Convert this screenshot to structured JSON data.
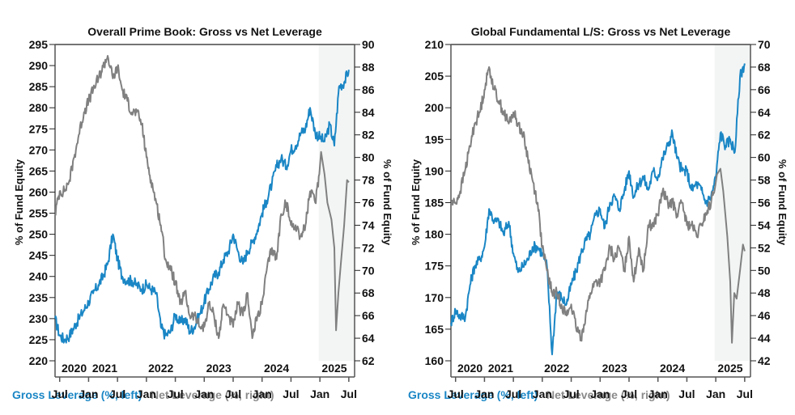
{
  "colors": {
    "gross": "#1a86c5",
    "net": "#808080",
    "shade": "#f3f5f5",
    "axis": "#555555"
  },
  "chart_data": [
    {
      "type": "line",
      "title": "Overall Prime Book: Gross vs Net Leverage",
      "ylabel_left": "% of Fund Equity",
      "ylabel_right": "% of Fund Equity",
      "ylim_left": [
        220,
        295
      ],
      "ylim_right": [
        62,
        90
      ],
      "yticks_left": [
        "220",
        "225",
        "230",
        "235",
        "240",
        "245",
        "250",
        "255",
        "260",
        "265",
        "270",
        "275",
        "280",
        "285",
        "290",
        "295"
      ],
      "yticks_right": [
        "62",
        "64",
        "66",
        "68",
        "70",
        "72",
        "74",
        "76",
        "78",
        "80",
        "82",
        "84",
        "86",
        "88",
        "90"
      ],
      "xlim": [
        2020.42,
        2025.6
      ],
      "xticks": [
        {
          "t": 2020.5,
          "label": "Jul"
        },
        {
          "t": 2021.0,
          "label": "Jan"
        },
        {
          "t": 2021.5,
          "label": "Jul"
        },
        {
          "t": 2022.0,
          "label": "Jan"
        },
        {
          "t": 2022.5,
          "label": "Jul"
        },
        {
          "t": 2023.0,
          "label": "Jan"
        },
        {
          "t": 2023.5,
          "label": "Jul"
        },
        {
          "t": 2024.0,
          "label": "Jan"
        },
        {
          "t": 2024.5,
          "label": "Jul"
        },
        {
          "t": 2025.0,
          "label": "Jan"
        },
        {
          "t": 2025.5,
          "label": "Jul"
        }
      ],
      "year_labels": [
        {
          "t": 2020.75,
          "label": "2020"
        },
        {
          "t": 2021.28,
          "label": "2021"
        },
        {
          "t": 2022.25,
          "label": "2022"
        },
        {
          "t": 2023.25,
          "label": "2023"
        },
        {
          "t": 2024.25,
          "label": "2024"
        },
        {
          "t": 2025.25,
          "label": "2025"
        }
      ],
      "shade_from": 2024.98,
      "series": [
        {
          "name": "Gross Leverage (%, left)",
          "axis": "left",
          "x": [
            2020.42,
            2020.5,
            2020.58,
            2020.67,
            2020.75,
            2020.83,
            2020.92,
            2021.0,
            2021.08,
            2021.17,
            2021.25,
            2021.33,
            2021.42,
            2021.5,
            2021.58,
            2021.67,
            2021.75,
            2021.83,
            2021.92,
            2022.0,
            2022.08,
            2022.17,
            2022.25,
            2022.33,
            2022.42,
            2022.5,
            2022.58,
            2022.67,
            2022.75,
            2022.83,
            2022.92,
            2023.0,
            2023.08,
            2023.17,
            2023.25,
            2023.33,
            2023.42,
            2023.5,
            2023.58,
            2023.67,
            2023.75,
            2023.83,
            2023.92,
            2024.0,
            2024.08,
            2024.17,
            2024.25,
            2024.33,
            2024.42,
            2024.5,
            2024.58,
            2024.67,
            2024.75,
            2024.83,
            2024.92,
            2025.0,
            2025.08,
            2025.17,
            2025.25,
            2025.33,
            2025.42,
            2025.5
          ],
          "values": [
            230,
            226,
            225,
            226,
            228,
            230,
            232,
            234,
            236,
            238,
            240,
            243,
            250,
            244,
            240,
            239,
            239,
            238,
            237,
            238,
            237,
            236,
            228,
            226,
            227,
            231,
            229,
            230,
            227,
            228,
            231,
            234,
            237,
            240,
            241,
            244,
            246,
            250,
            246,
            243,
            246,
            248,
            251,
            255,
            258,
            262,
            266,
            268,
            266,
            270,
            271,
            274,
            275,
            280,
            274,
            273,
            272,
            276,
            271,
            285,
            286,
            289
          ]
        },
        {
          "name": "Net Leverage (%, right)",
          "axis": "right",
          "x": [
            2020.42,
            2020.5,
            2020.58,
            2020.67,
            2020.75,
            2020.83,
            2020.92,
            2021.0,
            2021.08,
            2021.17,
            2021.25,
            2021.33,
            2021.42,
            2021.5,
            2021.58,
            2021.67,
            2021.75,
            2021.83,
            2021.92,
            2022.0,
            2022.08,
            2022.17,
            2022.25,
            2022.33,
            2022.42,
            2022.5,
            2022.58,
            2022.67,
            2022.75,
            2022.83,
            2022.92,
            2023.0,
            2023.08,
            2023.17,
            2023.25,
            2023.33,
            2023.42,
            2023.5,
            2023.58,
            2023.67,
            2023.75,
            2023.83,
            2023.92,
            2024.0,
            2024.08,
            2024.17,
            2024.25,
            2024.33,
            2024.42,
            2024.5,
            2024.58,
            2024.67,
            2024.75,
            2024.83,
            2024.92,
            2025.0,
            2025.08,
            2025.17,
            2025.25,
            2025.33,
            2025.42,
            2025.5
          ],
          "values": [
            75,
            77,
            77,
            78,
            80,
            82,
            84,
            85,
            86,
            87,
            88,
            89,
            87,
            88,
            86,
            85,
            84,
            84,
            83,
            80,
            78,
            76,
            74,
            71,
            70,
            69,
            67,
            68,
            66,
            66,
            65,
            65,
            67,
            66,
            64,
            67,
            66,
            65,
            67,
            66,
            68,
            64,
            66,
            67,
            70,
            72,
            71,
            75,
            76,
            74,
            74,
            73,
            74,
            77,
            76,
            79,
            81,
            79,
            77,
            76,
            75,
            76
          ]
        }
      ],
      "net_path_extra_2025": [
        [
          2025.02,
          80.5
        ],
        [
          2025.08,
          78.5
        ],
        [
          2025.13,
          76.0
        ],
        [
          2025.2,
          74.5
        ],
        [
          2025.25,
          72.0
        ],
        [
          2025.28,
          64.7
        ],
        [
          2025.32,
          68.0
        ],
        [
          2025.36,
          70.5
        ],
        [
          2025.42,
          74.0
        ],
        [
          2025.47,
          78.0
        ],
        [
          2025.5,
          77.8
        ]
      ]
    },
    {
      "type": "line",
      "title": "Global Fundamental L/S: Gross vs Net Leverage",
      "ylabel_left": "% of Fund Equity",
      "ylabel_right": "% of Fund Equity",
      "ylim_left": [
        160,
        210
      ],
      "ylim_right": [
        42,
        70
      ],
      "yticks_left": [
        "160",
        "165",
        "170",
        "175",
        "180",
        "185",
        "190",
        "195",
        "200",
        "205",
        "210"
      ],
      "yticks_right": [
        "42",
        "44",
        "46",
        "48",
        "50",
        "52",
        "54",
        "56",
        "58",
        "60",
        "62",
        "64",
        "66",
        "68",
        "70"
      ],
      "xlim": [
        2020.42,
        2025.6
      ],
      "xticks": [
        {
          "t": 2020.5,
          "label": "Jul"
        },
        {
          "t": 2021.0,
          "label": "Jan"
        },
        {
          "t": 2021.5,
          "label": "Jul"
        },
        {
          "t": 2022.0,
          "label": "Jan"
        },
        {
          "t": 2022.5,
          "label": "Jul"
        },
        {
          "t": 2023.0,
          "label": "Jan"
        },
        {
          "t": 2023.5,
          "label": "Jul"
        },
        {
          "t": 2024.0,
          "label": "Jan"
        },
        {
          "t": 2024.5,
          "label": "Jul"
        },
        {
          "t": 2025.0,
          "label": "Jan"
        },
        {
          "t": 2025.5,
          "label": "Jul"
        }
      ],
      "year_labels": [
        {
          "t": 2020.75,
          "label": "2020"
        },
        {
          "t": 2021.28,
          "label": "2021"
        },
        {
          "t": 2022.25,
          "label": "2022"
        },
        {
          "t": 2023.25,
          "label": "2023"
        },
        {
          "t": 2024.25,
          "label": "2024"
        },
        {
          "t": 2025.25,
          "label": "2025"
        }
      ],
      "shade_from": 2024.98,
      "series": [
        {
          "name": "Gross Leverage (%, left)",
          "axis": "left",
          "x": [
            2020.42,
            2020.5,
            2020.58,
            2020.67,
            2020.75,
            2020.83,
            2020.92,
            2021.0,
            2021.08,
            2021.17,
            2021.25,
            2021.33,
            2021.42,
            2021.5,
            2021.58,
            2021.67,
            2021.75,
            2021.83,
            2021.92,
            2022.0,
            2022.08,
            2022.17,
            2022.25,
            2022.33,
            2022.42,
            2022.5,
            2022.58,
            2022.67,
            2022.75,
            2022.83,
            2022.92,
            2023.0,
            2023.08,
            2023.17,
            2023.25,
            2023.33,
            2023.42,
            2023.5,
            2023.58,
            2023.67,
            2023.75,
            2023.83,
            2023.92,
            2024.0,
            2024.08,
            2024.17,
            2024.25,
            2024.33,
            2024.42,
            2024.5,
            2024.58,
            2024.67,
            2024.75,
            2024.83,
            2024.92,
            2025.0,
            2025.08,
            2025.17,
            2025.25,
            2025.33,
            2025.42,
            2025.5
          ],
          "values": [
            166,
            168,
            167,
            167,
            172,
            175,
            176,
            178,
            184,
            182,
            182,
            180,
            182,
            177,
            174,
            175,
            176,
            178,
            178,
            177,
            175,
            161,
            171,
            170,
            169,
            172,
            174,
            177,
            179,
            180,
            183,
            184,
            181,
            185,
            186,
            184,
            187,
            190,
            186,
            188,
            189,
            187,
            190,
            189,
            192,
            194,
            196,
            192,
            190,
            190,
            187,
            188,
            187,
            185,
            186,
            189,
            196,
            194,
            195,
            193,
            205,
            207
          ]
        },
        {
          "name": "Net Leverage (%, right)",
          "axis": "right",
          "x": [
            2020.42,
            2020.5,
            2020.58,
            2020.67,
            2020.75,
            2020.83,
            2020.92,
            2021.0,
            2021.08,
            2021.17,
            2021.25,
            2021.33,
            2021.42,
            2021.5,
            2021.58,
            2021.67,
            2021.75,
            2021.83,
            2021.92,
            2022.0,
            2022.08,
            2022.17,
            2022.25,
            2022.33,
            2022.42,
            2022.5,
            2022.58,
            2022.67,
            2022.75,
            2022.83,
            2022.92,
            2023.0,
            2023.08,
            2023.17,
            2023.25,
            2023.33,
            2023.42,
            2023.5,
            2023.58,
            2023.67,
            2023.75,
            2023.83,
            2023.92,
            2024.0,
            2024.08,
            2024.17,
            2024.25,
            2024.33,
            2024.42,
            2024.5,
            2024.58,
            2024.67,
            2024.75,
            2024.83,
            2024.92,
            2025.0,
            2025.08,
            2025.17,
            2025.25,
            2025.33,
            2025.42,
            2025.5
          ],
          "values": [
            56,
            56,
            57,
            59,
            61,
            63,
            64,
            66,
            68,
            66,
            65,
            64,
            63,
            64,
            63,
            62,
            60,
            58,
            56,
            52,
            50,
            48,
            48,
            47,
            46,
            47,
            45,
            44,
            46,
            48,
            49,
            49,
            50,
            52,
            51,
            52,
            50,
            53,
            49,
            52,
            50,
            54,
            54,
            55,
            57,
            56,
            56,
            55,
            56,
            54,
            54,
            53,
            54,
            55,
            56,
            58,
            59,
            56,
            53,
            48,
            47,
            51
          ]
        }
      ],
      "net_path_extra_2025": [
        [
          2025.02,
          58.5
        ],
        [
          2025.08,
          59.0
        ],
        [
          2025.13,
          57.0
        ],
        [
          2025.2,
          53.0
        ],
        [
          2025.25,
          49.0
        ],
        [
          2025.28,
          43.6
        ],
        [
          2025.32,
          48.0
        ],
        [
          2025.36,
          47.5
        ],
        [
          2025.42,
          50.0
        ],
        [
          2025.47,
          52.3
        ],
        [
          2025.5,
          51.7
        ]
      ]
    }
  ],
  "legend": {
    "gross": "Gross Leverage (%, left)",
    "net": "Net Leverage (%, right)"
  }
}
